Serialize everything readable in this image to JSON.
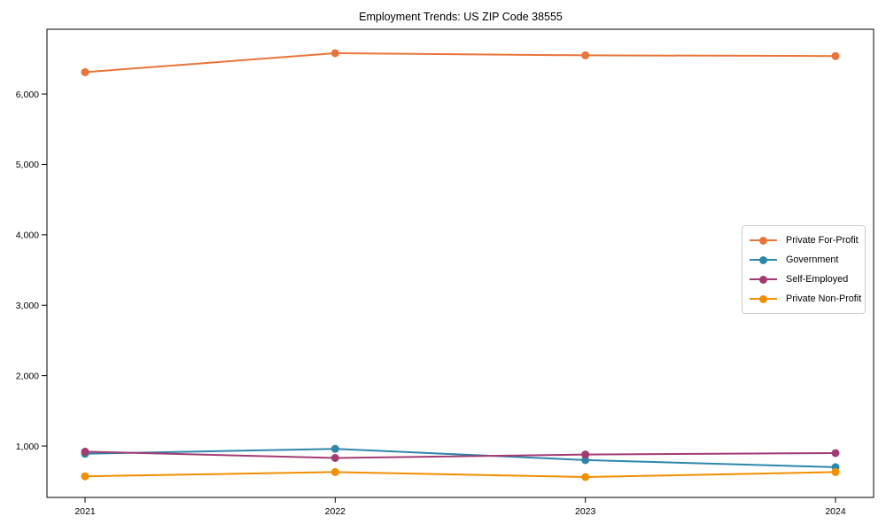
{
  "title": "Employment Trends: US ZIP Code 38555",
  "chart_data": {
    "type": "line",
    "title": "Employment Trends: US ZIP Code 38555",
    "xlabel": "",
    "ylabel": "",
    "categories": [
      "2021",
      "2022",
      "2023",
      "2024"
    ],
    "series": [
      {
        "name": "Private For-Profit",
        "color": "#E8743B",
        "values": [
          6310,
          6580,
          6550,
          6540
        ]
      },
      {
        "name": "Government",
        "color": "#2E86AB",
        "values": [
          890,
          960,
          800,
          700
        ]
      },
      {
        "name": "Self-Employed",
        "color": "#A23B72",
        "values": [
          920,
          830,
          880,
          900
        ]
      },
      {
        "name": "Private Non-Profit",
        "color": "#F18F01",
        "values": [
          570,
          630,
          560,
          630
        ]
      }
    ],
    "ylim": [
      270,
      6920
    ],
    "yticks": [
      1000,
      2000,
      3000,
      4000,
      5000,
      6000
    ],
    "ytick_labels": [
      "1,000",
      "2,000",
      "3,000",
      "4,000",
      "5,000",
      "6,000"
    ],
    "grid": false,
    "legend_position": "center-right",
    "marker": "circle",
    "line_width": 2,
    "marker_radius": 4.5
  }
}
